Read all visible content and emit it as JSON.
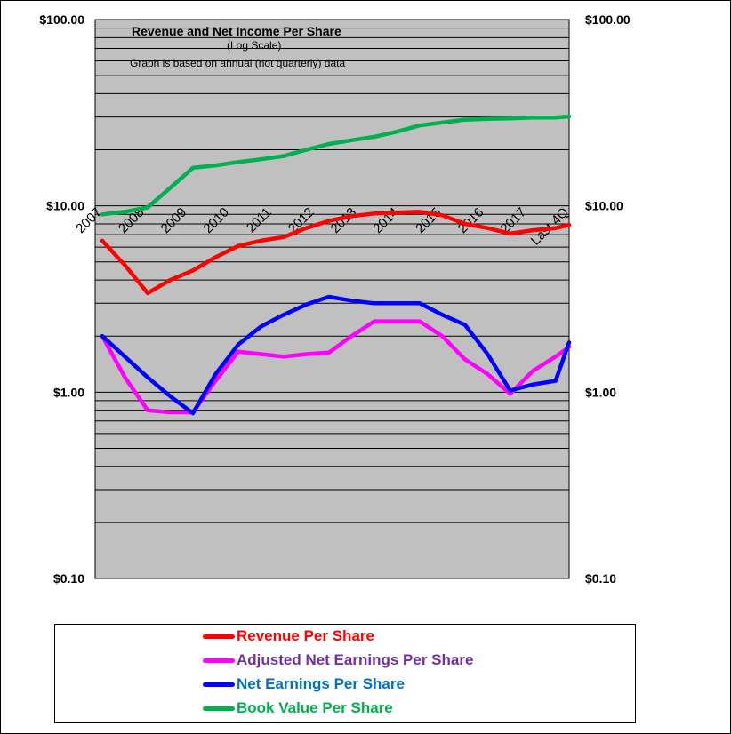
{
  "chart_data": {
    "type": "line",
    "title": "Revenue and Net Income Per Share",
    "subtitle": "(Log Scale)",
    "note": "Graph is based on annual (not quarterly) data",
    "y_scale": "log",
    "ylim": [
      0.1,
      100
    ],
    "y_tick_labels": [
      "$100.00",
      "$10.00",
      "$1.00",
      "$0.10"
    ],
    "y_tick_values": [
      100,
      10,
      1,
      0.1
    ],
    "x_tick_labels": [
      "2007",
      "2008",
      "2009",
      "2010",
      "2011",
      "2012",
      "2013",
      "2014",
      "2015",
      "2016",
      "2017",
      "Last 4Q"
    ],
    "x": [
      2007,
      2007.5,
      2008,
      2008.5,
      2009,
      2009.5,
      2010,
      2010.5,
      2011,
      2011.5,
      2012,
      2012.5,
      2013,
      2013.5,
      2014,
      2014.5,
      2015,
      2015.5,
      2016,
      2016.5,
      2017,
      2017.3
    ],
    "grid": true,
    "plot_background": "#c0c0c0",
    "legend_position": "bottom",
    "series": [
      {
        "name": "Revenue Per Share",
        "color": "#ff0000",
        "label_color": "#ff0000",
        "values": [
          6.5,
          4.8,
          3.4,
          4.0,
          4.5,
          5.3,
          6.1,
          6.5,
          6.8,
          7.6,
          8.3,
          8.8,
          9.1,
          9.2,
          9.3,
          8.9,
          8.0,
          7.6,
          7.1,
          7.4,
          7.6,
          7.9
        ]
      },
      {
        "name": "Adjusted Net Earnings Per Share",
        "color": "#ff00ff",
        "label_color": "#7030a0",
        "values": [
          2.0,
          1.2,
          0.8,
          0.78,
          0.78,
          1.15,
          1.65,
          1.6,
          1.55,
          1.6,
          1.63,
          2.0,
          2.4,
          2.4,
          2.4,
          2.0,
          1.5,
          1.25,
          0.98,
          1.3,
          1.55,
          1.75
        ]
      },
      {
        "name": "Net Earnings Per Share",
        "color": "#0000ff",
        "label_color": "#0070c0",
        "values": [
          2.0,
          1.55,
          1.2,
          0.95,
          0.77,
          1.25,
          1.8,
          2.25,
          2.6,
          2.95,
          3.25,
          3.1,
          3.0,
          3.0,
          3.0,
          2.6,
          2.3,
          1.6,
          1.02,
          1.1,
          1.15,
          1.85
        ]
      },
      {
        "name": "Book Value Per Share",
        "color": "#00b050",
        "label_color": "#00b050",
        "values": [
          9.0,
          9.3,
          9.8,
          12.5,
          16.0,
          16.5,
          17.2,
          17.8,
          18.5,
          20.0,
          21.5,
          22.5,
          23.5,
          25.0,
          27.0,
          28.0,
          29.0,
          29.3,
          29.5,
          29.8,
          29.8,
          30.2
        ]
      }
    ]
  }
}
